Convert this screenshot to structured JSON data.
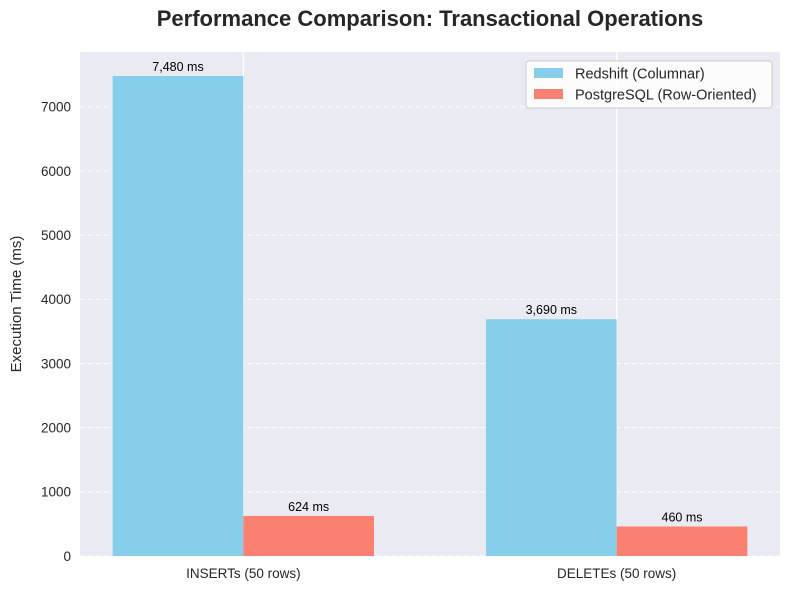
{
  "chart_data": {
    "type": "bar",
    "title": "Performance Comparison: Transactional Operations",
    "ylabel": "Execution Time (ms)",
    "categories": [
      "INSERTs (50 rows)",
      "DELETEs (50 rows)"
    ],
    "series": [
      {
        "name": "Redshift (Columnar)",
        "values": [
          7480,
          3690
        ],
        "data_labels": [
          "7,480 ms",
          "3,690 ms"
        ],
        "color": "#87ceeb"
      },
      {
        "name": "PostgreSQL (Row-Oriented)",
        "values": [
          624,
          460
        ],
        "data_labels": [
          "624 ms",
          "460 ms"
        ],
        "color": "#fa8072"
      }
    ],
    "ylim": [
      0,
      7854
    ],
    "yticks": [
      0,
      1000,
      2000,
      3000,
      4000,
      5000,
      6000,
      7000
    ],
    "grid": true,
    "legend_position": "top-right",
    "plot_background": "#eaeaf2"
  }
}
